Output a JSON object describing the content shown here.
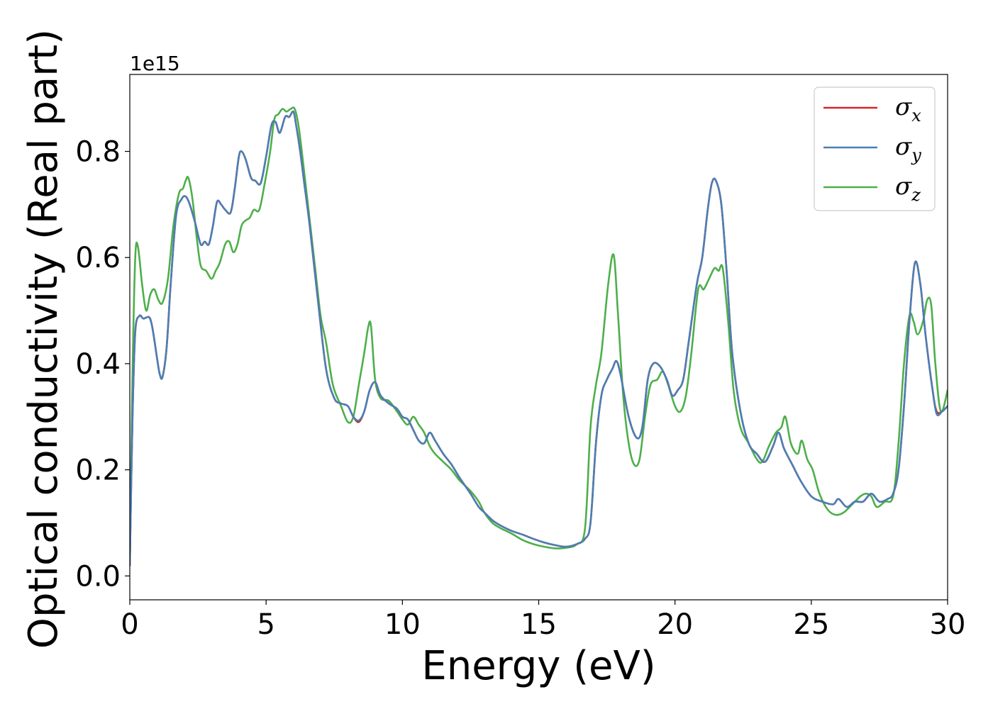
{
  "chart_data": {
    "type": "line",
    "xlabel": "Energy (eV)",
    "ylabel": "Optical conductivity (Real part)",
    "offset_label": "1e15",
    "xlim": [
      0,
      30
    ],
    "ylim": [
      -0.045,
      0.945
    ],
    "xticks": [
      0,
      5,
      10,
      15,
      20,
      25,
      30
    ],
    "xtick_labels": [
      "0",
      "5",
      "10",
      "15",
      "20",
      "25",
      "30"
    ],
    "yticks": [
      0.0,
      0.2,
      0.4,
      0.6,
      0.8
    ],
    "ytick_labels": [
      "0.0",
      "0.2",
      "0.4",
      "0.6",
      "0.8"
    ],
    "grid": false,
    "legend_position": "top-right",
    "series": [
      {
        "name": "σx",
        "legend_base": "σ",
        "legend_sub": "x",
        "color": "#d62728",
        "x": [
          0,
          0.1,
          0.2,
          0.35,
          0.5,
          0.7,
          0.8,
          0.9,
          1.0,
          1.1,
          1.2,
          1.35,
          1.5,
          1.7,
          1.9,
          2.05,
          2.2,
          2.4,
          2.6,
          2.75,
          2.9,
          3.05,
          3.2,
          3.35,
          3.5,
          3.7,
          3.85,
          4.0,
          4.1,
          4.25,
          4.45,
          4.6,
          4.8,
          5.0,
          5.2,
          5.35,
          5.5,
          5.7,
          5.85,
          6.0,
          6.1,
          6.25,
          6.4,
          6.6,
          6.9,
          7.2,
          7.5,
          7.75,
          8.0,
          8.2,
          8.4,
          8.6,
          8.8,
          9.0,
          9.2,
          9.5,
          9.8,
          10.0,
          10.2,
          10.4,
          10.6,
          10.8,
          11.0,
          11.2,
          11.5,
          11.8,
          12.1,
          12.5,
          12.8,
          13.0,
          13.3,
          13.6,
          14.0,
          14.4,
          14.8,
          15.2,
          15.6,
          16.0,
          16.4,
          16.7,
          16.9,
          17.1,
          17.3,
          17.5,
          17.7,
          17.85,
          18.0,
          18.3,
          18.6,
          18.8,
          19.0,
          19.2,
          19.45,
          19.7,
          19.9,
          20.1,
          20.3,
          20.5,
          20.8,
          21.0,
          21.2,
          21.35,
          21.5,
          21.7,
          21.9,
          22.1,
          22.4,
          22.7,
          23.0,
          23.3,
          23.6,
          23.8,
          24.0,
          24.3,
          24.6,
          25.0,
          25.4,
          25.8,
          26.0,
          26.3,
          26.6,
          26.9,
          27.2,
          27.5,
          27.8,
          28.0,
          28.2,
          28.4,
          28.6,
          28.8,
          29.0,
          29.2,
          29.45,
          29.6,
          29.8,
          30.0
        ],
        "y": [
          0.02,
          0.3,
          0.46,
          0.49,
          0.485,
          0.488,
          0.475,
          0.445,
          0.41,
          0.38,
          0.375,
          0.43,
          0.55,
          0.68,
          0.71,
          0.715,
          0.7,
          0.665,
          0.625,
          0.63,
          0.625,
          0.66,
          0.705,
          0.7,
          0.69,
          0.685,
          0.73,
          0.79,
          0.8,
          0.785,
          0.75,
          0.745,
          0.74,
          0.79,
          0.85,
          0.855,
          0.835,
          0.865,
          0.865,
          0.875,
          0.85,
          0.8,
          0.74,
          0.66,
          0.52,
          0.39,
          0.335,
          0.325,
          0.32,
          0.3,
          0.29,
          0.31,
          0.35,
          0.365,
          0.34,
          0.325,
          0.315,
          0.3,
          0.295,
          0.275,
          0.255,
          0.25,
          0.27,
          0.255,
          0.23,
          0.21,
          0.185,
          0.155,
          0.13,
          0.12,
          0.105,
          0.095,
          0.085,
          0.078,
          0.07,
          0.063,
          0.058,
          0.055,
          0.06,
          0.07,
          0.1,
          0.25,
          0.34,
          0.37,
          0.39,
          0.405,
          0.38,
          0.3,
          0.26,
          0.28,
          0.37,
          0.4,
          0.395,
          0.37,
          0.34,
          0.35,
          0.37,
          0.44,
          0.55,
          0.6,
          0.69,
          0.74,
          0.745,
          0.7,
          0.57,
          0.42,
          0.31,
          0.25,
          0.23,
          0.215,
          0.245,
          0.27,
          0.24,
          0.21,
          0.18,
          0.15,
          0.14,
          0.135,
          0.145,
          0.13,
          0.14,
          0.14,
          0.155,
          0.14,
          0.145,
          0.155,
          0.2,
          0.32,
          0.48,
          0.59,
          0.55,
          0.45,
          0.35,
          0.31,
          0.31,
          0.32
        ]
      },
      {
        "name": "σy",
        "legend_base": "σ",
        "legend_sub": "y",
        "color": "#4a7fb5",
        "x": [
          0,
          0.1,
          0.2,
          0.35,
          0.5,
          0.7,
          0.8,
          0.9,
          1.0,
          1.1,
          1.2,
          1.35,
          1.5,
          1.7,
          1.9,
          2.05,
          2.2,
          2.4,
          2.6,
          2.75,
          2.9,
          3.05,
          3.2,
          3.35,
          3.5,
          3.7,
          3.85,
          4.0,
          4.1,
          4.25,
          4.45,
          4.6,
          4.8,
          5.0,
          5.2,
          5.35,
          5.5,
          5.7,
          5.85,
          6.0,
          6.1,
          6.25,
          6.4,
          6.6,
          6.9,
          7.2,
          7.5,
          7.75,
          8.0,
          8.2,
          8.4,
          8.6,
          8.8,
          9.0,
          9.2,
          9.5,
          9.8,
          10.0,
          10.2,
          10.4,
          10.6,
          10.8,
          11.0,
          11.2,
          11.5,
          11.8,
          12.1,
          12.5,
          12.8,
          13.0,
          13.3,
          13.6,
          14.0,
          14.4,
          14.8,
          15.2,
          15.6,
          16.0,
          16.4,
          16.7,
          16.9,
          17.1,
          17.3,
          17.5,
          17.7,
          17.85,
          18.0,
          18.3,
          18.6,
          18.8,
          19.0,
          19.2,
          19.45,
          19.7,
          19.9,
          20.1,
          20.3,
          20.5,
          20.8,
          21.0,
          21.2,
          21.35,
          21.5,
          21.7,
          21.9,
          22.1,
          22.4,
          22.7,
          23.0,
          23.3,
          23.6,
          23.8,
          24.0,
          24.3,
          24.6,
          25.0,
          25.4,
          25.8,
          26.0,
          26.3,
          26.6,
          26.9,
          27.2,
          27.5,
          27.8,
          28.0,
          28.2,
          28.4,
          28.6,
          28.8,
          29.0,
          29.2,
          29.45,
          29.6,
          29.8,
          30.0
        ],
        "y": [
          0.02,
          0.3,
          0.46,
          0.49,
          0.485,
          0.488,
          0.475,
          0.445,
          0.41,
          0.38,
          0.375,
          0.43,
          0.55,
          0.68,
          0.71,
          0.715,
          0.7,
          0.665,
          0.625,
          0.63,
          0.625,
          0.66,
          0.705,
          0.7,
          0.69,
          0.685,
          0.73,
          0.79,
          0.8,
          0.785,
          0.75,
          0.745,
          0.74,
          0.79,
          0.85,
          0.855,
          0.835,
          0.865,
          0.865,
          0.875,
          0.85,
          0.8,
          0.74,
          0.66,
          0.52,
          0.39,
          0.335,
          0.325,
          0.32,
          0.3,
          0.293,
          0.31,
          0.35,
          0.365,
          0.34,
          0.325,
          0.315,
          0.3,
          0.295,
          0.275,
          0.255,
          0.25,
          0.27,
          0.255,
          0.23,
          0.21,
          0.185,
          0.155,
          0.13,
          0.12,
          0.105,
          0.095,
          0.085,
          0.078,
          0.07,
          0.063,
          0.058,
          0.055,
          0.06,
          0.07,
          0.1,
          0.25,
          0.34,
          0.37,
          0.39,
          0.405,
          0.38,
          0.3,
          0.26,
          0.28,
          0.37,
          0.4,
          0.395,
          0.37,
          0.34,
          0.35,
          0.37,
          0.44,
          0.55,
          0.6,
          0.69,
          0.74,
          0.745,
          0.7,
          0.57,
          0.42,
          0.31,
          0.25,
          0.23,
          0.215,
          0.245,
          0.27,
          0.24,
          0.21,
          0.18,
          0.15,
          0.14,
          0.135,
          0.145,
          0.13,
          0.14,
          0.14,
          0.155,
          0.14,
          0.145,
          0.155,
          0.2,
          0.32,
          0.48,
          0.59,
          0.55,
          0.45,
          0.35,
          0.305,
          0.31,
          0.32
        ]
      },
      {
        "name": "σz",
        "legend_base": "σ",
        "legend_sub": "z",
        "color": "#4daf4a",
        "x": [
          0,
          0.1,
          0.2,
          0.3,
          0.45,
          0.6,
          0.75,
          0.9,
          1.05,
          1.2,
          1.4,
          1.6,
          1.8,
          1.95,
          2.05,
          2.15,
          2.3,
          2.45,
          2.6,
          2.8,
          3.0,
          3.15,
          3.3,
          3.5,
          3.65,
          3.8,
          3.95,
          4.1,
          4.25,
          4.4,
          4.55,
          4.75,
          4.95,
          5.15,
          5.3,
          5.45,
          5.6,
          5.75,
          5.9,
          6.05,
          6.2,
          6.4,
          6.6,
          6.8,
          7.0,
          7.2,
          7.45,
          7.75,
          8.0,
          8.2,
          8.4,
          8.6,
          8.75,
          8.85,
          9.0,
          9.2,
          9.5,
          9.8,
          10.0,
          10.2,
          10.4,
          10.6,
          10.8,
          11.0,
          11.2,
          11.5,
          11.8,
          12.1,
          12.5,
          12.8,
          13.0,
          13.3,
          13.6,
          14.0,
          14.4,
          14.8,
          15.2,
          15.6,
          16.0,
          16.4,
          16.7,
          16.9,
          17.1,
          17.3,
          17.55,
          17.75,
          17.9,
          18.1,
          18.3,
          18.5,
          18.7,
          18.9,
          19.1,
          19.35,
          19.55,
          19.75,
          20.0,
          20.2,
          20.4,
          20.6,
          20.85,
          21.05,
          21.25,
          21.45,
          21.6,
          21.75,
          21.95,
          22.15,
          22.4,
          22.7,
          23.0,
          23.2,
          23.45,
          23.7,
          23.9,
          24.05,
          24.25,
          24.5,
          24.65,
          24.85,
          25.05,
          25.3,
          25.6,
          25.9,
          26.2,
          26.5,
          26.8,
          27.0,
          27.2,
          27.4,
          27.7,
          28.0,
          28.2,
          28.4,
          28.6,
          28.75,
          28.9,
          29.1,
          29.25,
          29.4,
          29.55,
          29.75,
          30.0
        ],
        "y": [
          0.02,
          0.38,
          0.6,
          0.62,
          0.55,
          0.5,
          0.53,
          0.54,
          0.52,
          0.515,
          0.56,
          0.66,
          0.72,
          0.73,
          0.745,
          0.75,
          0.71,
          0.64,
          0.585,
          0.575,
          0.56,
          0.575,
          0.59,
          0.625,
          0.63,
          0.61,
          0.625,
          0.66,
          0.67,
          0.675,
          0.69,
          0.69,
          0.74,
          0.8,
          0.86,
          0.87,
          0.88,
          0.875,
          0.88,
          0.88,
          0.845,
          0.76,
          0.67,
          0.58,
          0.49,
          0.44,
          0.36,
          0.32,
          0.29,
          0.3,
          0.36,
          0.42,
          0.47,
          0.47,
          0.37,
          0.335,
          0.33,
          0.31,
          0.295,
          0.285,
          0.3,
          0.285,
          0.27,
          0.245,
          0.23,
          0.215,
          0.2,
          0.18,
          0.16,
          0.14,
          0.12,
          0.1,
          0.09,
          0.08,
          0.068,
          0.06,
          0.055,
          0.052,
          0.053,
          0.06,
          0.09,
          0.28,
          0.36,
          0.42,
          0.55,
          0.605,
          0.5,
          0.34,
          0.25,
          0.21,
          0.22,
          0.3,
          0.36,
          0.37,
          0.385,
          0.36,
          0.32,
          0.31,
          0.34,
          0.42,
          0.54,
          0.54,
          0.56,
          0.58,
          0.575,
          0.58,
          0.48,
          0.35,
          0.28,
          0.25,
          0.22,
          0.215,
          0.245,
          0.27,
          0.28,
          0.3,
          0.25,
          0.23,
          0.255,
          0.22,
          0.2,
          0.155,
          0.125,
          0.115,
          0.12,
          0.135,
          0.15,
          0.155,
          0.15,
          0.13,
          0.14,
          0.15,
          0.25,
          0.4,
          0.49,
          0.48,
          0.455,
          0.48,
          0.52,
          0.51,
          0.4,
          0.31,
          0.35
        ]
      }
    ]
  }
}
